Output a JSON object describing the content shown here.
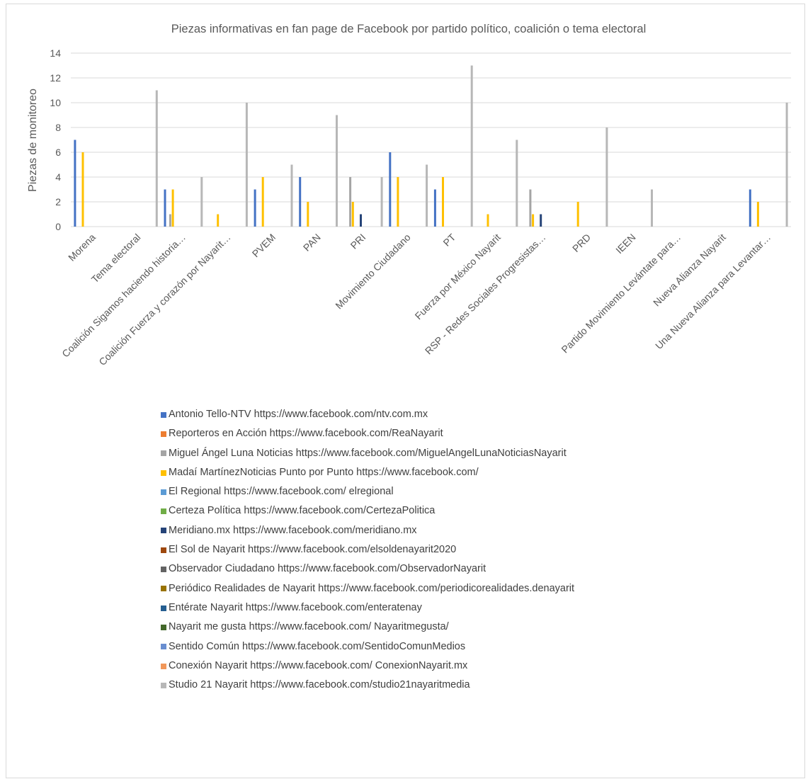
{
  "chart_data": {
    "type": "bar",
    "title": "Piezas informativas en fan page de Facebook por partido político, coalición o tema electoral",
    "xlabel": "",
    "ylabel": "Piezas de monitoreo",
    "ylim": [
      0,
      14
    ],
    "yticks": [
      0,
      2,
      4,
      6,
      8,
      10,
      12,
      14
    ],
    "grid": true,
    "legend_position": "bottom",
    "categories": [
      "Morena",
      "Tema electoral",
      "Coalición Sigamos haciendo historia…",
      "Coalición Fuerza y corazón por Nayarit…",
      "PVEM",
      "PAN",
      "PRI",
      "Movimiento Ciudadano",
      "PT",
      "Fuerza por México Nayarit",
      "RSP - Redes Sociales Progresistas…",
      "PRD",
      "IEEN",
      "Partido Movimiento Levántate para…",
      "Nueva Alianza Nayarit",
      "Una Nueva Alianza para Levantar…"
    ],
    "series": [
      {
        "name": "Antonio Tello-NTV  https://www.facebook.com/ntv.com.mx",
        "color": "#4472c4",
        "values": [
          7,
          0,
          3,
          0,
          3,
          4,
          0,
          6,
          3,
          0,
          0,
          0,
          0,
          0,
          0,
          3
        ]
      },
      {
        "name": "Reporteros en Acción https://www.facebook.com/ReaNayarit",
        "color": "#ed7d31",
        "values": [
          0,
          0,
          0,
          0,
          0,
          0,
          0,
          0,
          0,
          0,
          0,
          0,
          0,
          0,
          0,
          0
        ]
      },
      {
        "name": "Miguel Ángel Luna Noticias  https://www.facebook.com/MiguelAngelLunaNoticiasNayarit",
        "color": "#a5a5a5",
        "values": [
          0,
          0,
          1,
          0,
          0,
          0,
          4,
          0,
          0,
          0,
          3,
          0,
          0,
          0,
          0,
          0
        ]
      },
      {
        "name": "Madaí MartínezNoticias Punto por Punto  https://www.facebook.com/",
        "color": "#ffc000",
        "values": [
          6,
          0,
          3,
          1,
          4,
          2,
          2,
          4,
          4,
          1,
          1,
          2,
          0,
          0,
          0,
          2
        ]
      },
      {
        "name": "El Regional  https://www.facebook.com/ elregional",
        "color": "#5b9bd5",
        "values": [
          0,
          0,
          0,
          0,
          0,
          0,
          0,
          0,
          0,
          0,
          0,
          0,
          0,
          0,
          0,
          0
        ]
      },
      {
        "name": "Certeza Política  https://www.facebook.com/CertezaPolitica",
        "color": "#70ad47",
        "values": [
          0,
          0,
          0,
          0,
          0,
          0,
          0,
          0,
          0,
          0,
          0,
          0,
          0,
          0,
          0,
          0
        ]
      },
      {
        "name": "Meridiano.mx  https://www.facebook.com/meridiano.mx",
        "color": "#264478",
        "values": [
          0,
          0,
          0,
          0,
          0,
          0,
          1,
          0,
          0,
          0,
          1,
          0,
          0,
          0,
          0,
          0
        ]
      },
      {
        "name": "El Sol de Nayarit  https://www.facebook.com/elsoldenayarit2020",
        "color": "#9e480e",
        "values": [
          0,
          0,
          0,
          0,
          0,
          0,
          0,
          0,
          0,
          0,
          0,
          0,
          0,
          0,
          0,
          0
        ]
      },
      {
        "name": "Observador Ciudadano https://www.facebook.com/ObservadorNayarit",
        "color": "#636363",
        "values": [
          0,
          0,
          0,
          0,
          0,
          0,
          0,
          0,
          0,
          0,
          0,
          0,
          0,
          0,
          0,
          0
        ]
      },
      {
        "name": "Periódico Realidades de Nayarit https://www.facebook.com/periodicorealidades.denayarit",
        "color": "#997300",
        "values": [
          0,
          0,
          0,
          0,
          0,
          0,
          0,
          0,
          0,
          0,
          0,
          0,
          0,
          0,
          0,
          0
        ]
      },
      {
        "name": "Entérate Nayarit  https://www.facebook.com/enteratenay",
        "color": "#255e91",
        "values": [
          0,
          0,
          0,
          0,
          0,
          0,
          0,
          0,
          0,
          0,
          0,
          0,
          0,
          0,
          0,
          0
        ]
      },
      {
        "name": "Nayarit me gusta https://www.facebook.com/ Nayaritmegusta/",
        "color": "#43682b",
        "values": [
          0,
          0,
          0,
          0,
          0,
          0,
          0,
          0,
          0,
          0,
          0,
          0,
          0,
          0,
          0,
          0
        ]
      },
      {
        "name": "Sentido Común  https://www.facebook.com/SentidoComunMedios",
        "color": "#698ed0",
        "values": [
          0,
          0,
          0,
          0,
          0,
          0,
          0,
          0,
          0,
          0,
          0,
          0,
          0,
          0,
          0,
          0
        ]
      },
      {
        "name": "Conexión Nayarit  https://www.facebook.com/ ConexionNayarit.mx",
        "color": "#f1975a",
        "values": [
          0,
          0,
          0,
          0,
          0,
          0,
          0,
          0,
          0,
          0,
          0,
          0,
          0,
          0,
          0,
          0
        ]
      },
      {
        "name": "Studio 21 Nayarit  https://www.facebook.com/studio21nayaritmedia",
        "color": "#b7b7b7",
        "values": [
          0,
          11,
          4,
          10,
          5,
          9,
          4,
          5,
          13,
          7,
          0,
          8,
          3,
          0,
          0,
          10
        ]
      }
    ]
  }
}
